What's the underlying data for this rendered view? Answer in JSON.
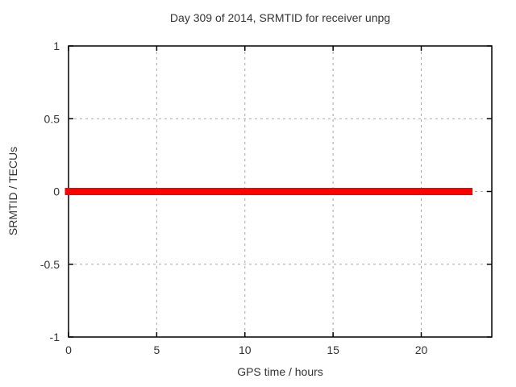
{
  "page": {
    "background": "#ffffff"
  },
  "chart_data": {
    "type": "line",
    "title": "Day 309 of 2014, SRMTID for receiver unpg",
    "xlabel": "GPS time / hours",
    "ylabel": "SRMTID / TECUs",
    "xlim": [
      0,
      24
    ],
    "ylim": [
      -1,
      1
    ],
    "xticks": {
      "values": [
        0,
        5,
        10,
        15,
        20
      ],
      "labels": [
        "0",
        "5",
        "10",
        "15",
        "20"
      ]
    },
    "yticks": {
      "values": [
        -1,
        -0.5,
        0,
        0.5,
        1
      ],
      "labels": [
        "-1",
        "-0.5",
        "0",
        "0.5",
        "1"
      ]
    },
    "grid": true,
    "grid_color": "#a8a8a8",
    "border_color": "#000000",
    "text_color": "#333333",
    "legend": "none",
    "series": [
      {
        "name": "SRMTID",
        "color": "#ff0000",
        "line_width": 9,
        "x": [
          0,
          22.7
        ],
        "y": [
          0,
          0
        ]
      }
    ]
  }
}
